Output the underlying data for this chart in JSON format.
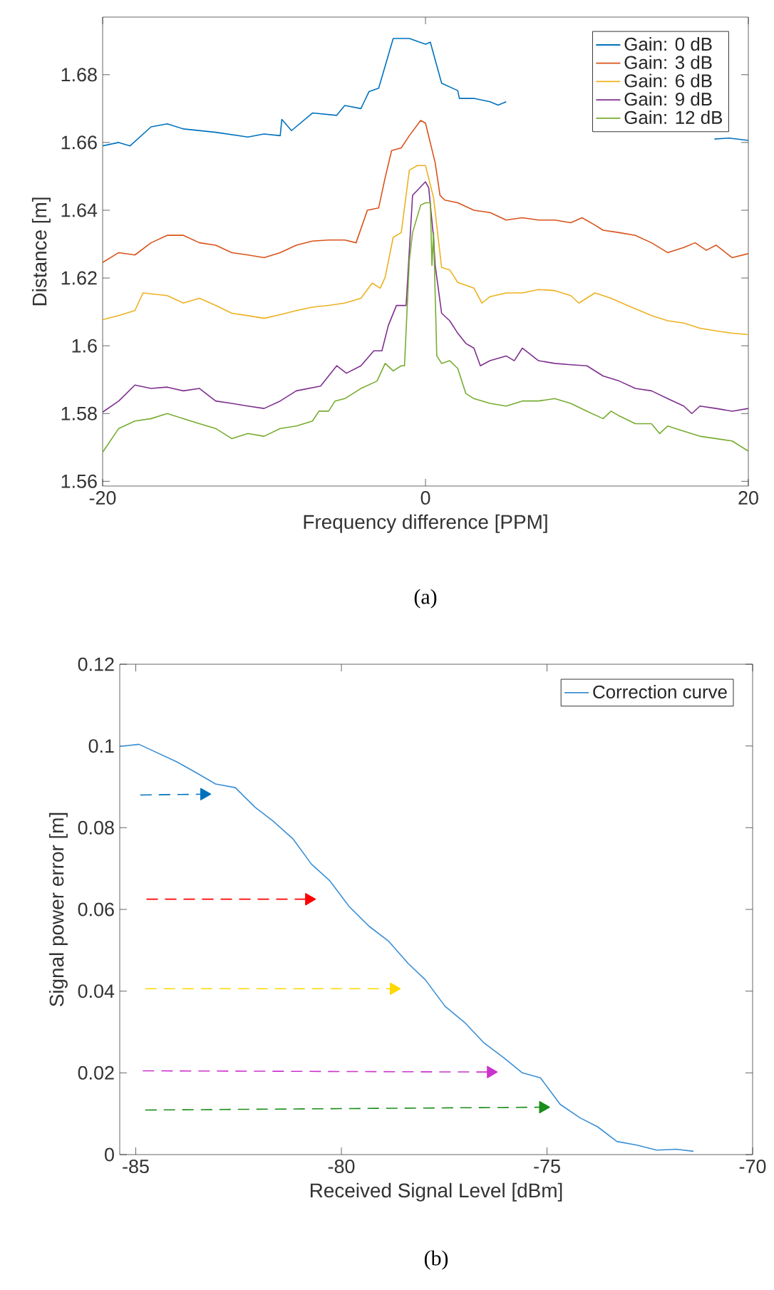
{
  "chart_data": [
    {
      "type": "line",
      "xlabel": "Frequency difference [PPM]",
      "ylabel": "Distance [m]",
      "annotations": [
        "(a)"
      ],
      "legend": "top right",
      "xlim": [
        -20,
        20
      ],
      "ylim": [
        1.5586,
        1.697
      ],
      "xticks": [
        -20,
        0,
        20
      ],
      "yticks": [
        1.56,
        1.58,
        1.6,
        1.62,
        1.64,
        1.66,
        1.68
      ],
      "series": [
        {
          "name": "Gain: 0 dB",
          "color": "#0072bd",
          "x": [
            -20,
            -19,
            -18.3,
            -17,
            -16,
            -15,
            -13,
            -11,
            -10,
            -9,
            -8.9,
            -8.3,
            -7,
            -5.5,
            -5,
            -4,
            -3.5,
            -2.9,
            -2,
            -1,
            0,
            0.3,
            1,
            2,
            2.1,
            3,
            4,
            4.5,
            5,
            6,
            17.5,
            17.9,
            18.8,
            20
          ],
          "values": [
            1.659,
            1.66,
            1.659,
            1.6646,
            1.6655,
            1.664,
            1.663,
            1.6616,
            1.6625,
            1.662,
            1.6668,
            1.6635,
            1.6687,
            1.668,
            1.6709,
            1.67,
            1.675,
            1.676,
            1.6907,
            1.6907,
            1.689,
            1.6896,
            1.6775,
            1.6753,
            1.673,
            1.673,
            1.672,
            1.671,
            1.672,
            null,
            null,
            1.661,
            1.6613,
            1.6606
          ]
        },
        {
          "name": "Gain: 3 dB",
          "color": "#d95319",
          "x": [
            -20,
            -19,
            -18,
            -17,
            -16,
            -15,
            -14,
            -13,
            -12,
            -11,
            -10,
            -9,
            -8,
            -7,
            -6,
            -5,
            -4.3,
            -3.6,
            -2.9,
            -2.5,
            -2.1,
            -1.5,
            -1,
            -0.3,
            0,
            0.6,
            0.9,
            1.2,
            2,
            3,
            4,
            5,
            6,
            7,
            8,
            9,
            9.7,
            10.5,
            11,
            12,
            13,
            14,
            15,
            16,
            16.7,
            17.4,
            18,
            19,
            20
          ],
          "values": [
            1.6246,
            1.6275,
            1.6268,
            1.6304,
            1.6326,
            1.6326,
            1.6304,
            1.6297,
            1.6275,
            1.6268,
            1.626,
            1.6275,
            1.6297,
            1.6309,
            1.6312,
            1.6312,
            1.6304,
            1.64,
            1.6407,
            1.6496,
            1.6576,
            1.6584,
            1.662,
            1.6665,
            1.6657,
            1.654,
            1.6444,
            1.643,
            1.6422,
            1.64,
            1.6393,
            1.6371,
            1.6378,
            1.6371,
            1.6371,
            1.6363,
            1.6378,
            1.6356,
            1.6341,
            1.6334,
            1.6326,
            1.6304,
            1.6275,
            1.629,
            1.6304,
            1.6282,
            1.6297,
            1.626,
            1.6272
          ]
        },
        {
          "name": "Gain: 6 dB",
          "color": "#edb120",
          "x": [
            -20,
            -19,
            -18,
            -17.5,
            -16,
            -15,
            -14,
            -13,
            -12,
            -11,
            -10,
            -9,
            -8,
            -7,
            -6,
            -5,
            -4,
            -3.3,
            -2.8,
            -2.5,
            -2,
            -1.5,
            -1,
            -0.5,
            0,
            0.5,
            1,
            1.5,
            2,
            3,
            3.5,
            4,
            5,
            6,
            7,
            8,
            9,
            9.5,
            10.5,
            11.5,
            12.5,
            14,
            15,
            16,
            17,
            18,
            19,
            20
          ],
          "values": [
            1.6077,
            1.6089,
            1.6104,
            1.6156,
            1.6148,
            1.6126,
            1.614,
            1.6119,
            1.6096,
            1.6089,
            1.6081,
            1.6092,
            1.6104,
            1.6114,
            1.6119,
            1.6126,
            1.614,
            1.6185,
            1.617,
            1.6202,
            1.632,
            1.6334,
            1.6518,
            1.6532,
            1.6532,
            1.6437,
            1.6231,
            1.6224,
            1.6187,
            1.617,
            1.6126,
            1.6145,
            1.6156,
            1.6156,
            1.6166,
            1.6163,
            1.6148,
            1.6126,
            1.6156,
            1.614,
            1.6119,
            1.6089,
            1.6074,
            1.6067,
            1.6052,
            1.6044,
            1.6037,
            1.6033
          ]
        },
        {
          "name": "Gain: 9 dB",
          "color": "#7e2f8e",
          "x": [
            -20,
            -19,
            -18,
            -17,
            -16,
            -15,
            -14,
            -13,
            -12,
            -11,
            -10,
            -9,
            -8,
            -6.5,
            -5.5,
            -4.9,
            -4,
            -3.2,
            -2.7,
            -2.3,
            -1.8,
            -1.2,
            -0.8,
            -0.5,
            -0.2,
            0,
            0.2,
            0.5,
            0.6,
            1,
            1.5,
            2,
            2.5,
            3,
            3.4,
            4,
            5,
            5.5,
            6,
            7,
            8,
            9,
            10,
            11,
            12,
            13,
            14,
            15,
            16,
            16.5,
            17,
            18,
            19,
            20
          ],
          "values": [
            1.5804,
            1.5837,
            1.5884,
            1.5874,
            1.5878,
            1.5867,
            1.5874,
            1.5837,
            1.583,
            1.5822,
            1.5815,
            1.5837,
            1.5867,
            1.5881,
            1.5941,
            1.5919,
            1.5941,
            1.5985,
            1.5985,
            1.606,
            1.6119,
            1.6119,
            1.6444,
            1.6459,
            1.6474,
            1.6484,
            1.6466,
            1.6319,
            1.6237,
            1.6096,
            1.6074,
            1.6037,
            1.6007,
            1.5993,
            1.5941,
            1.5956,
            1.597,
            1.5956,
            1.5993,
            1.5956,
            1.5948,
            1.5944,
            1.5941,
            1.5911,
            1.5896,
            1.5874,
            1.5867,
            1.5844,
            1.5822,
            1.58,
            1.5822,
            1.5815,
            1.5807,
            1.5815
          ]
        },
        {
          "name": "Gain: 12 dB",
          "color": "#77ac30",
          "x": [
            -20,
            -19,
            -18,
            -17,
            -16,
            -15,
            -14,
            -13,
            -12,
            -11,
            -10,
            -9,
            -8,
            -7,
            -6.6,
            -6,
            -5.6,
            -5,
            -4,
            -3,
            -2.5,
            -2,
            -1.5,
            -1.3,
            -1,
            -0.8,
            -0.3,
            0,
            0.3,
            0.4,
            0.5,
            0.7,
            1,
            1.5,
            2,
            2.5,
            3,
            4,
            5,
            6,
            7,
            8,
            9,
            10,
            11,
            11.5,
            12,
            13,
            14,
            14.5,
            15,
            16,
            17,
            18,
            19,
            20
          ],
          "values": [
            1.5686,
            1.5756,
            1.5778,
            1.5785,
            1.58,
            1.5785,
            1.577,
            1.5756,
            1.5726,
            1.5741,
            1.5733,
            1.5756,
            1.5763,
            1.5778,
            1.5807,
            1.5807,
            1.5837,
            1.5844,
            1.5874,
            1.5896,
            1.5948,
            1.5926,
            1.5941,
            1.5941,
            1.6252,
            1.6334,
            1.6415,
            1.6422,
            1.6422,
            1.6237,
            1.6334,
            1.597,
            1.5948,
            1.5956,
            1.5933,
            1.5859,
            1.5844,
            1.583,
            1.5822,
            1.5837,
            1.5837,
            1.5844,
            1.583,
            1.5807,
            1.5785,
            1.5807,
            1.5793,
            1.577,
            1.577,
            1.5741,
            1.5763,
            1.5748,
            1.5733,
            1.5726,
            1.5719,
            1.5689
          ]
        }
      ]
    },
    {
      "type": "line",
      "xlabel": "Received Signal Level [dBm]",
      "ylabel": "Signal power error [m]",
      "annotations": [
        "(b)"
      ],
      "legend": "top right",
      "xlim": [
        -85.39,
        -70
      ],
      "ylim": [
        0,
        0.12
      ],
      "xticks": [
        -85,
        -80,
        -75,
        -70
      ],
      "yticks": [
        0,
        0.02,
        0.04,
        0.06,
        0.08,
        0.1,
        0.12
      ],
      "series": [
        {
          "name": "Correction curve",
          "color": "#3b8fd5",
          "x": [
            -85.39,
            -84.92,
            -84,
            -83.52,
            -83.06,
            -82.58,
            -82.1,
            -81.66,
            -81.18,
            -80.73,
            -80.29,
            -79.81,
            -79.33,
            -78.85,
            -78.37,
            -77.96,
            -77.48,
            -77,
            -76.53,
            -76.04,
            -75.6,
            -75.16,
            -74.68,
            -74.2,
            -73.77,
            -73.3,
            -72.81,
            -72.33,
            -71.86,
            -71.44
          ],
          "values": [
            0.0999,
            0.1004,
            0.0961,
            0.0934,
            0.0907,
            0.0898,
            0.085,
            0.0816,
            0.0773,
            0.0711,
            0.0671,
            0.0607,
            0.0559,
            0.0522,
            0.0467,
            0.0428,
            0.0363,
            0.0323,
            0.0273,
            0.0236,
            0.02,
            0.0188,
            0.0123,
            0.009,
            0.0068,
            0.0032,
            0.0023,
            0.0011,
            0.0013,
            0.0008
          ]
        },
        {
          "color": "#0072bd",
          "line_style": "dashed",
          "x": [
            -84.89,
            -83.34
          ],
          "values": [
            0.088,
            0.0882
          ]
        },
        {
          "color": "#ff0000",
          "line_style": "dashed",
          "x": [
            -84.74,
            -80.79
          ],
          "values": [
            0.0625,
            0.0625
          ]
        },
        {
          "color": "#ffd700",
          "line_style": "dashed",
          "x": [
            -84.77,
            -78.73
          ],
          "values": [
            0.0406,
            0.0406
          ]
        },
        {
          "color": "#cc33cc",
          "line_style": "dashed",
          "x": [
            -84.83,
            -76.37
          ],
          "values": [
            0.0205,
            0.0202
          ]
        },
        {
          "color": "#1a8c1a",
          "line_style": "dashed",
          "x": [
            -84.77,
            -75.1
          ],
          "values": [
            0.0109,
            0.0116
          ]
        }
      ]
    }
  ]
}
